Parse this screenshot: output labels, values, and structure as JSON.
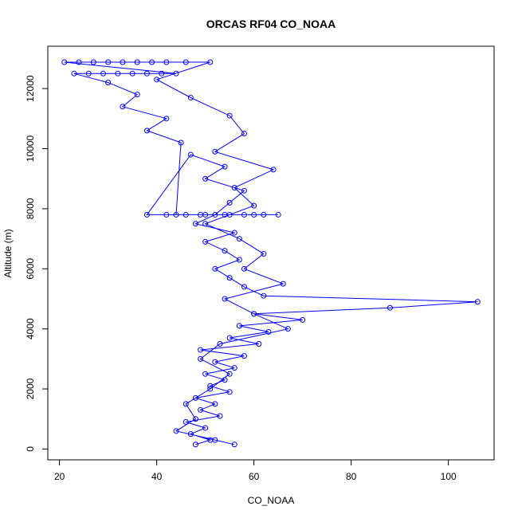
{
  "chart_data": {
    "type": "line",
    "title": "ORCAS RF04 CO_NOAA",
    "x_label": "CO_NOAA",
    "y_label": "Altitude (m)",
    "color": "#0000ff",
    "markers": true,
    "x": [
      48,
      51,
      47,
      50,
      46,
      53,
      49,
      52,
      48,
      55,
      51,
      54,
      50,
      56,
      52,
      58,
      49,
      61,
      55,
      63,
      57,
      70,
      60,
      88,
      106,
      62,
      58,
      55,
      52,
      57,
      54,
      50,
      56,
      48,
      52,
      55,
      58,
      50,
      54,
      47,
      38,
      42,
      46,
      50,
      54,
      58,
      62,
      65,
      60,
      55,
      49,
      44,
      45,
      38,
      42,
      33,
      36,
      30,
      23,
      26,
      29,
      32,
      35,
      38,
      41,
      44,
      21,
      24,
      27,
      30,
      33,
      36,
      39,
      42,
      46,
      51,
      40,
      47,
      55,
      58,
      52,
      64,
      56,
      60,
      50,
      57,
      62,
      58,
      66,
      54,
      60,
      67,
      53,
      49,
      55,
      51,
      46,
      48,
      44,
      52,
      56
    ],
    "values": [
      150,
      300,
      500,
      700,
      900,
      1100,
      1300,
      1500,
      1700,
      1900,
      2100,
      2300,
      2500,
      2700,
      2900,
      3100,
      3300,
      3500,
      3700,
      3900,
      4100,
      4300,
      4500,
      4700,
      4900,
      5100,
      5400,
      5700,
      6000,
      6300,
      6600,
      6900,
      7200,
      7500,
      7800,
      8200,
      8600,
      9000,
      9400,
      9800,
      7800,
      7800,
      7800,
      7800,
      7800,
      7800,
      7800,
      7800,
      7800,
      7800,
      7800,
      7800,
      10200,
      10600,
      11000,
      11400,
      11800,
      12200,
      12500,
      12500,
      12500,
      12500,
      12500,
      12500,
      12500,
      12500,
      12880,
      12880,
      12880,
      12880,
      12880,
      12880,
      12880,
      12880,
      12880,
      12880,
      12300,
      11700,
      11100,
      10500,
      9900,
      9300,
      8700,
      8100,
      7500,
      7000,
      6500,
      6000,
      5500,
      5000,
      4500,
      4000,
      3500,
      3000,
      2500,
      2000,
      1500,
      1000,
      600,
      300,
      150
    ],
    "xlim": [
      17.6,
      109.4
    ],
    "ylim": [
      -360,
      13410
    ],
    "xticks": [
      20,
      40,
      60,
      80,
      100
    ],
    "yticks": [
      0,
      2000,
      4000,
      6000,
      8000,
      10000,
      12000
    ]
  }
}
